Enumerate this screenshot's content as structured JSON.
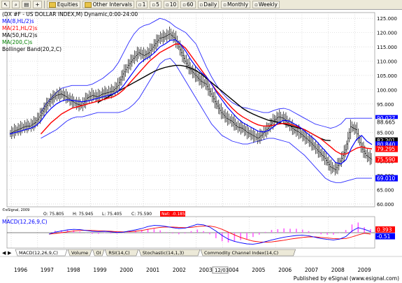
{
  "toolbar": {
    "equities": "Equities",
    "other_intervals": "Other Intervals",
    "intervals": [
      "1",
      "5",
      "10",
      "60",
      "Daily",
      "Monthly",
      "Weekly"
    ]
  },
  "chart_data": {
    "type": "line",
    "title": "(DX #F - US DOLLAR INDEX,M) Dynamic,0:00-24:00",
    "indicators": [
      {
        "label": "MA(8,HL/2)s",
        "color": "#0000ff"
      },
      {
        "label": "MA(21,HL/2)s",
        "color": "#ff0000"
      },
      {
        "label": "MA(50,HL/2)s",
        "color": "#000000"
      },
      {
        "label": "MA(200,C)s",
        "color": "#008000"
      },
      {
        "label": "Bollinger Band(20,2,C)",
        "color": "#000000"
      }
    ],
    "x_labels": [
      "1996",
      "1997",
      "1998",
      "1999",
      "2000",
      "2001",
      "2002",
      "2003",
      "2004",
      "2005",
      "2006",
      "2007",
      "2008",
      "2009"
    ],
    "y_ticks": [
      125.0,
      120.0,
      115.0,
      110.0,
      105.0,
      100.0,
      95.0,
      90.0,
      85.0,
      80.0,
      75.0,
      70.0,
      65.0,
      60.0
    ],
    "ylim": [
      59,
      127
    ],
    "price_tags": [
      {
        "value": "90.027",
        "y": 90.027,
        "bg": "#0000ff",
        "fg": "#ffffff"
      },
      {
        "value": "88.665",
        "y": 88.665,
        "bg": "#ffffff",
        "fg": "#000000"
      },
      {
        "value": "82.201",
        "y": 82.201,
        "bg": "#000000",
        "fg": "#ffffff"
      },
      {
        "value": "80.840",
        "y": 80.84,
        "bg": "#0000ff",
        "fg": "#ffffff"
      },
      {
        "value": "79.295",
        "y": 79.295,
        "bg": "#ff0000",
        "fg": "#ffffff"
      },
      {
        "value": "75.590",
        "y": 75.59,
        "bg": "#ff0000",
        "fg": "#ffffff"
      },
      {
        "value": "69.010",
        "y": 69.01,
        "bg": "#0000ff",
        "fg": "#ffffff"
      }
    ],
    "ohlc_bar": {
      "o": "O: 75.805",
      "h": "H: 75.945",
      "l": "L: 75.405",
      "c": "C: 75.590",
      "net": "Net: -0.185"
    },
    "copyright": "©eSignal, 2009",
    "price_series": [
      84.5,
      85.5,
      86.3,
      87.1,
      87.3,
      88.5,
      91,
      94,
      96.5,
      98,
      98.5,
      97.5,
      96,
      95,
      94.5,
      97,
      98,
      97.5,
      98.5,
      99,
      99.5,
      101.5,
      105.5,
      108.5,
      111,
      113,
      112,
      113,
      115.5,
      118,
      118.5,
      119.5,
      118,
      114,
      110,
      107,
      105,
      103,
      102,
      98.5,
      95,
      92,
      90,
      89,
      87,
      86.5,
      85,
      84,
      83,
      84.5,
      86.5,
      89,
      90.5,
      90,
      88,
      86,
      85,
      83.5,
      82,
      80,
      78,
      76,
      73,
      72,
      75,
      79,
      87,
      86,
      80,
      77,
      75.6
    ],
    "ma8": [
      84.5,
      85,
      85.5,
      86,
      86.5,
      87.3,
      89,
      91.5,
      93.5,
      95,
      96,
      96.5,
      96.3,
      96,
      95.8,
      96,
      96.5,
      97,
      97.5,
      98,
      98.5,
      99.5,
      101.5,
      104,
      106.5,
      109,
      110.5,
      111.5,
      113,
      115,
      116,
      117.3,
      117.5,
      116,
      113.5,
      110.5,
      108,
      106,
      104.5,
      102,
      99,
      96.5,
      94,
      92,
      90,
      88.5,
      87.5,
      86.5,
      85.5,
      85.2,
      85.7,
      87,
      88.5,
      89.3,
      89,
      88,
      87,
      85.5,
      84,
      82.5,
      80.5,
      78.5,
      76.5,
      74.5,
      74,
      75.5,
      79.5,
      82.5,
      84,
      82,
      80.8
    ],
    "ma21": [
      null,
      null,
      null,
      null,
      null,
      null,
      84.5,
      86.5,
      88.5,
      90,
      91.5,
      92.5,
      93.5,
      94,
      94.5,
      95,
      95.5,
      96,
      96.5,
      97,
      97.5,
      98.5,
      100,
      102,
      104,
      106,
      108,
      110,
      111.5,
      113,
      114,
      115,
      116,
      116,
      114.5,
      112,
      109.5,
      107,
      104.5,
      102,
      99.5,
      97.5,
      95.5,
      93.5,
      91.8,
      90.5,
      89.5,
      88.5,
      87.7,
      87.3,
      87.3,
      87.6,
      88,
      88.2,
      88,
      87.5,
      86.8,
      86,
      85,
      84,
      83,
      81.5,
      80,
      78.5,
      77.5,
      77.5,
      78.5,
      79.5,
      80,
      79.5,
      79.3
    ],
    "ma50": [
      null,
      null,
      null,
      null,
      null,
      null,
      null,
      null,
      null,
      null,
      null,
      null,
      null,
      null,
      null,
      null,
      null,
      95.5,
      96.5,
      97.5,
      98.5,
      99.5,
      100.5,
      101.5,
      102.5,
      103.5,
      104.5,
      105.5,
      106.5,
      107.2,
      107.8,
      108.2,
      108.5,
      108.5,
      108.2,
      107.5,
      106.7,
      105.5,
      104,
      102.5,
      101,
      99.5,
      98,
      96.5,
      95,
      93.5,
      92.4,
      91.5,
      90.7,
      90,
      89.3,
      89,
      88.5,
      88,
      87.5,
      87,
      86.5,
      86,
      85,
      84,
      83,
      82.3,
      82.2
    ],
    "bb_upper": [
      null,
      null,
      null,
      null,
      null,
      null,
      92,
      95,
      97,
      99,
      100.5,
      101,
      101.5,
      101.5,
      101.5,
      101.5,
      102,
      103,
      104,
      105.5,
      107,
      109.5,
      113,
      116.5,
      119.5,
      121.5,
      122.5,
      123,
      124,
      125,
      124.5,
      123.5,
      122,
      121,
      120,
      118,
      116,
      112,
      108,
      104.5,
      101.5,
      99,
      97,
      95.5,
      94.5,
      93.8,
      93.5,
      93,
      92.5,
      92,
      92,
      92.7,
      93.3,
      93.5,
      93,
      92,
      91,
      90,
      89,
      88,
      87.5,
      87,
      86.5,
      87,
      88,
      90,
      90,
      90.027,
      90.027,
      90.027,
      90.027
    ],
    "bb_lower": [
      null,
      null,
      null,
      null,
      null,
      null,
      83,
      84,
      85,
      86,
      87.5,
      89,
      90,
      90.5,
      90.5,
      91,
      91.5,
      92,
      92,
      92,
      92,
      92,
      92.5,
      93.5,
      95,
      97,
      100,
      103,
      106,
      109,
      110.5,
      111,
      109,
      106,
      103,
      100,
      97,
      94,
      91,
      88,
      86,
      84,
      83,
      82,
      81.5,
      81,
      81,
      81.5,
      82,
      82.5,
      83,
      83,
      82.5,
      82,
      81.5,
      80,
      78.5,
      77,
      75,
      73,
      71,
      69,
      68,
      67.5,
      67.5,
      68,
      68.5,
      69,
      69.01,
      69.01,
      69.01
    ],
    "macd": {
      "label": "MACD(12,26,9,C)",
      "value_tags": [
        {
          "value": "0.393",
          "bg": "#ff0000",
          "fg": "#ffffff"
        },
        {
          "value": "-0.51",
          "bg": "#0000ff",
          "fg": "#ffffff"
        }
      ],
      "ylim": [
        -5,
        5
      ],
      "line": [
        -0.5,
        0.2,
        0.6,
        1,
        1.2,
        1.1,
        0.8,
        0.5,
        0.4,
        0.5,
        0.3,
        0.1,
        0.2,
        0.6,
        1,
        1.5,
        2.2,
        2.6,
        2.5,
        2.2,
        1.8,
        1.5,
        1.6,
        2.3,
        3,
        2.8,
        2,
        0.6,
        -1,
        -2.3,
        -3.1,
        -3.6,
        -4,
        -4.1,
        -3.8,
        -3.2,
        -2.6,
        -2.1,
        -1.6,
        -1.3,
        -1,
        -0.9,
        -1.1,
        -1.6,
        -2.1,
        -2.4,
        -2.6,
        -2.3,
        -1.4,
        0.6,
        1.8,
        1.2,
        0.393
      ],
      "signal": [
        -0.5,
        -0.3,
        0,
        0.3,
        0.6,
        0.8,
        0.85,
        0.8,
        0.7,
        0.6,
        0.5,
        0.35,
        0.3,
        0.35,
        0.5,
        0.8,
        1.2,
        1.6,
        1.9,
        2.05,
        2,
        1.9,
        1.8,
        1.9,
        2.2,
        2.4,
        2.4,
        2,
        1.2,
        0.2,
        -0.8,
        -1.7,
        -2.4,
        -3,
        -3.3,
        -3.4,
        -3.3,
        -3,
        -2.7,
        -2.3,
        -2,
        -1.7,
        -1.5,
        -1.5,
        -1.7,
        -1.9,
        -2.1,
        -2.2,
        -2.1,
        -1.5,
        -0.8,
        -0.2,
        -0.51
      ]
    },
    "tabs": [
      "MACD(12,26,9,C)",
      "Volume",
      "OI",
      "RSI(14,C)",
      "Stochastic(14,1,3)",
      "Commodity Channel Index(14,C)"
    ],
    "cursor_date": "12/03"
  },
  "footer": {
    "credit": "Published by eSignal (www.esignal.com)"
  },
  "colors": {
    "ma8": "#0000ff",
    "ma21": "#ff0000",
    "ma50": "#000000",
    "bollinger": "#2a2aff",
    "price": "#000000"
  }
}
